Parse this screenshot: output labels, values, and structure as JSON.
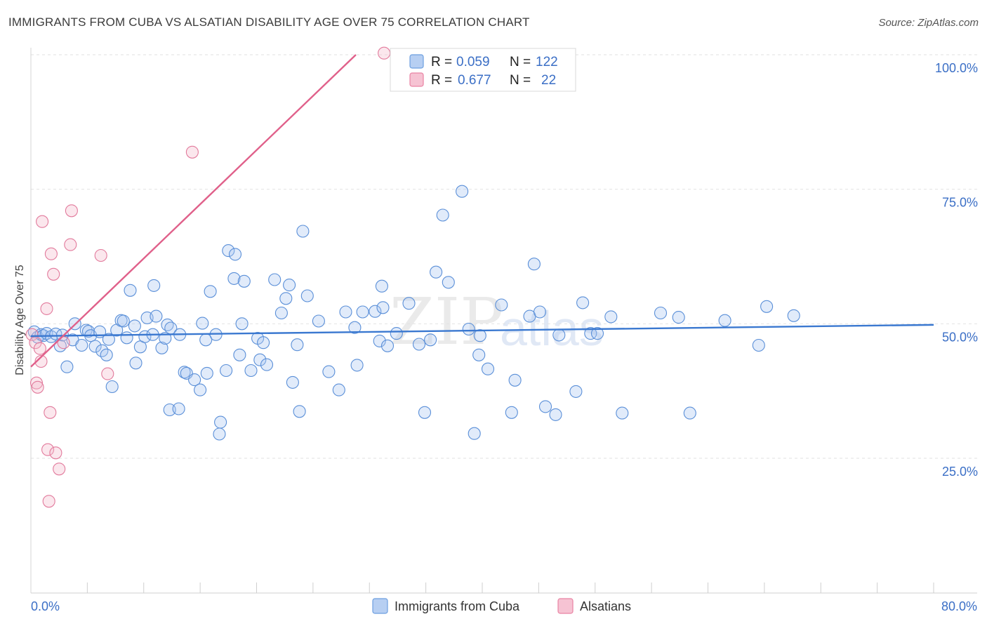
{
  "header": {
    "title": "IMMIGRANTS FROM CUBA VS ALSATIAN DISABILITY AGE OVER 75 CORRELATION CHART",
    "source": "Source: ZipAtlas.com"
  },
  "watermark": {
    "zip": "ZIP",
    "atlas": "atlas"
  },
  "legend": {
    "r_label": "R = ",
    "n_label": "N = ",
    "series": [
      {
        "name": "Immigrants from Cuba",
        "r": "0.059",
        "n": "122",
        "color": "#6d9fe0",
        "fill": "#b7cff2"
      },
      {
        "name": "Alsatians",
        "r": "0.677",
        "n": "22",
        "color": "#e983a3",
        "fill": "#f6c3d3"
      }
    ]
  },
  "chart_data": {
    "type": "scatter",
    "title": "IMMIGRANTS FROM CUBA VS ALSATIAN DISABILITY AGE OVER 75 CORRELATION CHART",
    "xlabel": "",
    "ylabel": "Disability Age Over 75",
    "xlim": [
      0,
      80
    ],
    "ylim": [
      0,
      105
    ],
    "x_tick_labels": [
      "0.0%",
      "80.0%"
    ],
    "y_ticks": [
      25,
      50,
      75,
      100
    ],
    "y_tick_labels": [
      "25.0%",
      "50.0%",
      "75.0%",
      "100.0%"
    ],
    "grid": true,
    "series": [
      {
        "name": "Immigrants from Cuba",
        "color": "#3a78d0",
        "trend": {
          "x": [
            0,
            80
          ],
          "y": [
            47.7,
            49.8
          ]
        },
        "points": [
          [
            0.3,
            48.5
          ],
          [
            0.6,
            47.5
          ],
          [
            0.9,
            48.0
          ],
          [
            1.1,
            47.8
          ],
          [
            1.4,
            48.2
          ],
          [
            1.8,
            47.6
          ],
          [
            2.2,
            48.1
          ],
          [
            2.6,
            45.9
          ],
          [
            2.8,
            47.9
          ],
          [
            3.2,
            42.0
          ],
          [
            3.7,
            47.0
          ],
          [
            3.9,
            50.0
          ],
          [
            4.5,
            46.0
          ],
          [
            4.9,
            48.8
          ],
          [
            5.1,
            48.6
          ],
          [
            5.3,
            47.8
          ],
          [
            5.7,
            45.8
          ],
          [
            6.1,
            48.5
          ],
          [
            6.3,
            45.0
          ],
          [
            6.7,
            44.2
          ],
          [
            6.9,
            47.1
          ],
          [
            7.2,
            38.3
          ],
          [
            7.6,
            48.8
          ],
          [
            8.0,
            50.6
          ],
          [
            8.2,
            50.5
          ],
          [
            8.5,
            47.4
          ],
          [
            8.8,
            56.2
          ],
          [
            9.2,
            49.6
          ],
          [
            9.3,
            42.7
          ],
          [
            9.7,
            45.7
          ],
          [
            10.1,
            47.6
          ],
          [
            10.3,
            51.1
          ],
          [
            10.8,
            48.0
          ],
          [
            10.9,
            57.1
          ],
          [
            11.1,
            51.4
          ],
          [
            11.6,
            45.5
          ],
          [
            11.9,
            47.3
          ],
          [
            12.1,
            49.8
          ],
          [
            12.3,
            34.0
          ],
          [
            12.4,
            49.2
          ],
          [
            13.1,
            34.2
          ],
          [
            13.2,
            48.0
          ],
          [
            13.6,
            41.0
          ],
          [
            13.8,
            40.8
          ],
          [
            14.5,
            39.6
          ],
          [
            15.0,
            37.7
          ],
          [
            15.2,
            50.1
          ],
          [
            15.5,
            47.0
          ],
          [
            15.6,
            40.8
          ],
          [
            15.9,
            56.0
          ],
          [
            16.4,
            48.0
          ],
          [
            16.8,
            31.7
          ],
          [
            16.7,
            29.5
          ],
          [
            17.3,
            41.3
          ],
          [
            17.5,
            63.6
          ],
          [
            18.1,
            62.9
          ],
          [
            18.0,
            58.4
          ],
          [
            18.5,
            44.2
          ],
          [
            18.7,
            50.0
          ],
          [
            18.9,
            57.9
          ],
          [
            19.5,
            41.3
          ],
          [
            20.1,
            47.3
          ],
          [
            20.3,
            43.3
          ],
          [
            20.6,
            46.5
          ],
          [
            20.9,
            42.4
          ],
          [
            21.6,
            58.2
          ],
          [
            22.2,
            52.0
          ],
          [
            22.6,
            54.7
          ],
          [
            22.9,
            57.2
          ],
          [
            23.2,
            39.1
          ],
          [
            23.6,
            46.1
          ],
          [
            23.8,
            33.7
          ],
          [
            24.1,
            67.2
          ],
          [
            24.5,
            55.2
          ],
          [
            25.5,
            50.5
          ],
          [
            26.4,
            41.1
          ],
          [
            27.3,
            37.7
          ],
          [
            27.9,
            52.2
          ],
          [
            28.7,
            49.3
          ],
          [
            28.9,
            42.3
          ],
          [
            29.4,
            52.2
          ],
          [
            30.5,
            52.3
          ],
          [
            30.9,
            46.8
          ],
          [
            31.1,
            57.0
          ],
          [
            31.2,
            53.0
          ],
          [
            31.6,
            45.9
          ],
          [
            32.4,
            48.2
          ],
          [
            33.5,
            53.8
          ],
          [
            34.4,
            46.2
          ],
          [
            34.9,
            33.5
          ],
          [
            35.4,
            47.0
          ],
          [
            35.9,
            59.6
          ],
          [
            36.5,
            70.2
          ],
          [
            37.0,
            57.7
          ],
          [
            38.2,
            74.6
          ],
          [
            38.8,
            49.0
          ],
          [
            39.3,
            29.6
          ],
          [
            39.7,
            44.2
          ],
          [
            39.8,
            47.8
          ],
          [
            40.5,
            41.6
          ],
          [
            41.7,
            53.5
          ],
          [
            42.9,
            39.5
          ],
          [
            42.6,
            33.5
          ],
          [
            44.2,
            51.4
          ],
          [
            44.6,
            61.1
          ],
          [
            45.1,
            52.2
          ],
          [
            45.6,
            34.6
          ],
          [
            46.5,
            33.1
          ],
          [
            46.8,
            47.9
          ],
          [
            48.3,
            37.4
          ],
          [
            48.9,
            53.9
          ],
          [
            49.6,
            48.2
          ],
          [
            50.2,
            48.2
          ],
          [
            51.4,
            51.3
          ],
          [
            52.4,
            33.4
          ],
          [
            57.4,
            51.2
          ],
          [
            58.4,
            33.4
          ],
          [
            61.5,
            50.6
          ],
          [
            65.2,
            53.2
          ],
          [
            64.5,
            46.0
          ],
          [
            67.6,
            51.5
          ],
          [
            55.8,
            52.0
          ]
        ]
      },
      {
        "name": "Alsatians",
        "color": "#e0608a",
        "trend": {
          "x": [
            0,
            28.8
          ],
          "y": [
            42.0,
            100.0
          ]
        },
        "points": [
          [
            0.1,
            48.0
          ],
          [
            0.4,
            46.5
          ],
          [
            0.5,
            39.0
          ],
          [
            0.6,
            38.2
          ],
          [
            0.8,
            45.4
          ],
          [
            0.9,
            43.0
          ],
          [
            1.0,
            69.0
          ],
          [
            1.4,
            52.8
          ],
          [
            1.5,
            26.6
          ],
          [
            1.6,
            17.0
          ],
          [
            1.7,
            33.5
          ],
          [
            1.8,
            63.0
          ],
          [
            2.0,
            59.2
          ],
          [
            2.2,
            26.0
          ],
          [
            2.5,
            23.0
          ],
          [
            2.9,
            46.5
          ],
          [
            3.5,
            64.7
          ],
          [
            3.6,
            71.0
          ],
          [
            6.2,
            62.7
          ],
          [
            6.8,
            40.7
          ],
          [
            14.3,
            81.9
          ],
          [
            31.3,
            100.3
          ]
        ]
      }
    ]
  }
}
